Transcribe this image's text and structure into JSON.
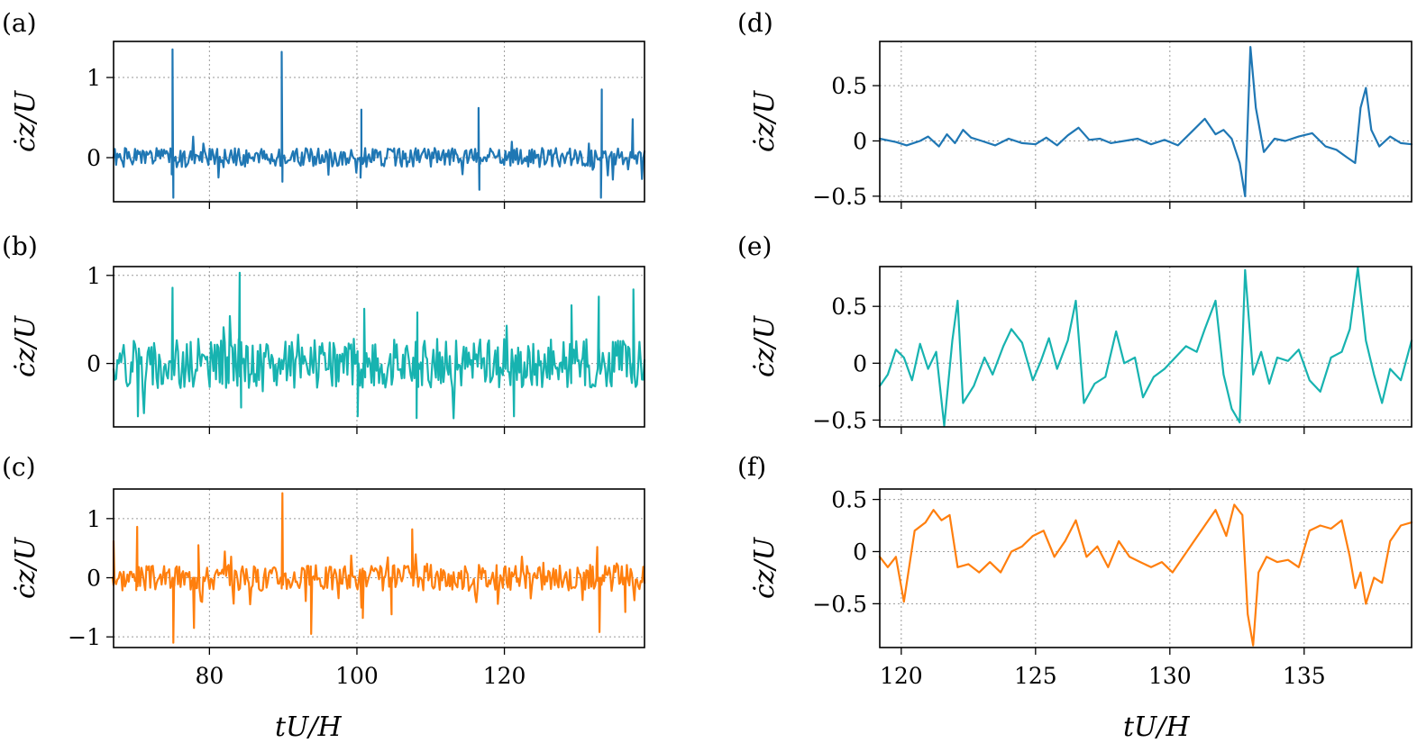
{
  "colors": {
    "blue": "#1f77b4",
    "teal": "#17b3b0",
    "orange": "#ff7f0e"
  },
  "chart_data": [
    {
      "panel": "(a)",
      "type": "line",
      "ylabel": "ċz/U",
      "xlabel": "",
      "xlim": [
        67,
        139
      ],
      "ylim": [
        -0.55,
        1.45
      ],
      "xticks": [
        80,
        100,
        120
      ],
      "yticks": [
        0,
        1
      ],
      "ytick_labels": [
        "0",
        "1"
      ],
      "grid": true,
      "color": "#1f77b4",
      "spikes": [
        [
          75,
          1.35
        ],
        [
          75.1,
          -0.5
        ],
        [
          89.8,
          1.32
        ],
        [
          89.9,
          -0.3
        ],
        [
          100.6,
          0.6
        ],
        [
          100.5,
          -0.25
        ],
        [
          116.5,
          0.62
        ],
        [
          116.6,
          -0.4
        ],
        [
          133.2,
          0.85
        ],
        [
          133.1,
          -0.5
        ],
        [
          137.4,
          0.48
        ]
      ],
      "noise": 0.12,
      "seed": 1
    },
    {
      "panel": "(b)",
      "type": "line",
      "ylabel": "ċz/U",
      "xlabel": "",
      "xlim": [
        67,
        139
      ],
      "ylim": [
        -0.72,
        1.1
      ],
      "xticks": [
        80,
        100,
        120
      ],
      "yticks": [
        0,
        1
      ],
      "ytick_labels": [
        "0",
        "1"
      ],
      "grid": true,
      "color": "#17b3b0",
      "spikes": [
        [
          75,
          0.86
        ],
        [
          84.1,
          1.03
        ],
        [
          84.3,
          -0.5
        ],
        [
          70.3,
          -0.6
        ],
        [
          100.1,
          -0.6
        ],
        [
          101,
          0.62
        ],
        [
          108.1,
          -0.62
        ],
        [
          108.2,
          0.58
        ],
        [
          121.3,
          -0.6
        ],
        [
          132.8,
          0.76
        ],
        [
          137.5,
          0.84
        ],
        [
          129.1,
          0.66
        ]
      ],
      "noise": 0.28,
      "seed": 2
    },
    {
      "panel": "(c)",
      "type": "line",
      "ylabel": "ċz/U",
      "xlabel": "",
      "xlim": [
        67,
        139
      ],
      "ylim": [
        -1.18,
        1.5
      ],
      "xticks": [
        80,
        100,
        120
      ],
      "yticks": [
        -1,
        0,
        1
      ],
      "ytick_labels": [
        "−1",
        "0",
        "1"
      ],
      "grid": true,
      "color": "#ff7f0e",
      "spikes": [
        [
          67,
          0.62
        ],
        [
          70.2,
          0.86
        ],
        [
          75.1,
          -1.1
        ],
        [
          77.9,
          -0.85
        ],
        [
          78.5,
          0.55
        ],
        [
          89.9,
          1.43
        ],
        [
          93.8,
          -0.95
        ],
        [
          100.8,
          -0.68
        ],
        [
          104.7,
          -0.62
        ],
        [
          107.5,
          0.82
        ],
        [
          132.6,
          0.52
        ],
        [
          132.9,
          -0.92
        ],
        [
          136.4,
          -0.58
        ]
      ],
      "noise": 0.22,
      "seed": 3
    },
    {
      "panel": "(d)",
      "type": "line",
      "ylabel": "ċz/U",
      "xlabel": "",
      "xlim": [
        119.2,
        139
      ],
      "ylim": [
        -0.55,
        0.9
      ],
      "xticks": [
        120,
        125,
        130,
        135
      ],
      "yticks": [
        -0.5,
        0,
        0.5
      ],
      "ytick_labels": [
        "−0.5",
        "0",
        "0.5"
      ],
      "grid": true,
      "color": "#1f77b4",
      "points": [
        [
          119.2,
          0.02
        ],
        [
          119.8,
          -0.01
        ],
        [
          120.2,
          -0.04
        ],
        [
          120.7,
          0.0
        ],
        [
          121.0,
          0.04
        ],
        [
          121.4,
          -0.05
        ],
        [
          121.7,
          0.06
        ],
        [
          122.0,
          -0.02
        ],
        [
          122.3,
          0.1
        ],
        [
          122.6,
          0.03
        ],
        [
          123.0,
          0.0
        ],
        [
          123.5,
          -0.04
        ],
        [
          124.0,
          0.02
        ],
        [
          124.5,
          -0.02
        ],
        [
          125.0,
          -0.03
        ],
        [
          125.4,
          0.03
        ],
        [
          125.8,
          -0.04
        ],
        [
          126.2,
          0.05
        ],
        [
          126.6,
          0.12
        ],
        [
          127.0,
          0.01
        ],
        [
          127.4,
          0.02
        ],
        [
          127.8,
          -0.02
        ],
        [
          128.3,
          0.0
        ],
        [
          128.8,
          0.02
        ],
        [
          129.3,
          -0.03
        ],
        [
          129.8,
          0.01
        ],
        [
          130.3,
          -0.04
        ],
        [
          130.8,
          0.08
        ],
        [
          131.3,
          0.2
        ],
        [
          131.7,
          0.06
        ],
        [
          132.0,
          0.1
        ],
        [
          132.3,
          0.02
        ],
        [
          132.6,
          -0.2
        ],
        [
          132.8,
          -0.5
        ],
        [
          133.0,
          0.85
        ],
        [
          133.2,
          0.3
        ],
        [
          133.5,
          -0.1
        ],
        [
          133.9,
          0.02
        ],
        [
          134.3,
          0.0
        ],
        [
          134.8,
          0.04
        ],
        [
          135.3,
          0.07
        ],
        [
          135.8,
          -0.05
        ],
        [
          136.2,
          -0.08
        ],
        [
          136.6,
          -0.15
        ],
        [
          136.9,
          -0.2
        ],
        [
          137.1,
          0.3
        ],
        [
          137.3,
          0.48
        ],
        [
          137.5,
          0.1
        ],
        [
          137.8,
          -0.05
        ],
        [
          138.2,
          0.04
        ],
        [
          138.6,
          -0.02
        ],
        [
          139.0,
          -0.03
        ]
      ]
    },
    {
      "panel": "(e)",
      "type": "line",
      "ylabel": "ċz/U",
      "xlabel": "",
      "xlim": [
        119.2,
        139
      ],
      "ylim": [
        -0.56,
        0.85
      ],
      "xticks": [
        120,
        125,
        130,
        135
      ],
      "yticks": [
        -0.5,
        0,
        0.5
      ],
      "ytick_labels": [
        "−0.5",
        "0",
        "0.5"
      ],
      "grid": true,
      "color": "#17b3b0",
      "points": [
        [
          119.2,
          -0.2
        ],
        [
          119.5,
          -0.1
        ],
        [
          119.8,
          0.12
        ],
        [
          120.1,
          0.05
        ],
        [
          120.4,
          -0.15
        ],
        [
          120.7,
          0.17
        ],
        [
          121.0,
          -0.05
        ],
        [
          121.3,
          0.1
        ],
        [
          121.6,
          -0.55
        ],
        [
          121.9,
          0.2
        ],
        [
          122.1,
          0.55
        ],
        [
          122.3,
          -0.35
        ],
        [
          122.7,
          -0.2
        ],
        [
          123.1,
          0.05
        ],
        [
          123.4,
          -0.1
        ],
        [
          123.8,
          0.15
        ],
        [
          124.1,
          0.3
        ],
        [
          124.5,
          0.18
        ],
        [
          124.9,
          -0.15
        ],
        [
          125.2,
          0.02
        ],
        [
          125.5,
          0.22
        ],
        [
          125.8,
          -0.05
        ],
        [
          126.2,
          0.2
        ],
        [
          126.5,
          0.55
        ],
        [
          126.8,
          -0.35
        ],
        [
          127.2,
          -0.18
        ],
        [
          127.6,
          -0.12
        ],
        [
          128.0,
          0.28
        ],
        [
          128.3,
          0.0
        ],
        [
          128.7,
          0.05
        ],
        [
          129.0,
          -0.3
        ],
        [
          129.4,
          -0.12
        ],
        [
          129.8,
          -0.05
        ],
        [
          130.2,
          0.05
        ],
        [
          130.6,
          0.15
        ],
        [
          131.0,
          0.1
        ],
        [
          131.3,
          0.3
        ],
        [
          131.7,
          0.55
        ],
        [
          132.0,
          -0.1
        ],
        [
          132.3,
          -0.4
        ],
        [
          132.6,
          -0.52
        ],
        [
          132.8,
          0.82
        ],
        [
          133.1,
          -0.1
        ],
        [
          133.4,
          0.1
        ],
        [
          133.7,
          -0.18
        ],
        [
          134.0,
          0.05
        ],
        [
          134.4,
          0.02
        ],
        [
          134.8,
          0.12
        ],
        [
          135.2,
          -0.15
        ],
        [
          135.6,
          -0.25
        ],
        [
          136.0,
          0.05
        ],
        [
          136.4,
          0.1
        ],
        [
          136.7,
          0.3
        ],
        [
          137.0,
          0.84
        ],
        [
          137.3,
          0.2
        ],
        [
          137.6,
          -0.1
        ],
        [
          137.9,
          -0.35
        ],
        [
          138.2,
          -0.05
        ],
        [
          138.6,
          -0.15
        ],
        [
          139.0,
          0.2
        ]
      ]
    },
    {
      "panel": "(f)",
      "type": "line",
      "ylabel": "ċz/U",
      "xlabel": "tU/H",
      "xlim": [
        119.2,
        139
      ],
      "ylim": [
        -0.92,
        0.6
      ],
      "xticks": [
        120,
        125,
        130,
        135
      ],
      "xtick_labels": [
        "120",
        "125",
        "130",
        "135"
      ],
      "yticks": [
        -0.5,
        0,
        0.5
      ],
      "ytick_labels": [
        "−0.5",
        "0",
        "0.5"
      ],
      "grid": true,
      "color": "#ff7f0e",
      "points": [
        [
          119.2,
          -0.05
        ],
        [
          119.5,
          -0.15
        ],
        [
          119.8,
          -0.05
        ],
        [
          120.1,
          -0.48
        ],
        [
          120.5,
          0.2
        ],
        [
          120.9,
          0.28
        ],
        [
          121.2,
          0.4
        ],
        [
          121.5,
          0.3
        ],
        [
          121.8,
          0.35
        ],
        [
          122.1,
          -0.15
        ],
        [
          122.5,
          -0.12
        ],
        [
          122.9,
          -0.2
        ],
        [
          123.3,
          -0.1
        ],
        [
          123.7,
          -0.2
        ],
        [
          124.1,
          0.0
        ],
        [
          124.5,
          0.05
        ],
        [
          124.9,
          0.15
        ],
        [
          125.3,
          0.2
        ],
        [
          125.7,
          -0.05
        ],
        [
          126.1,
          0.1
        ],
        [
          126.5,
          0.3
        ],
        [
          126.9,
          -0.05
        ],
        [
          127.3,
          0.05
        ],
        [
          127.7,
          -0.15
        ],
        [
          128.1,
          0.1
        ],
        [
          128.5,
          -0.05
        ],
        [
          128.9,
          -0.1
        ],
        [
          129.3,
          -0.15
        ],
        [
          129.7,
          -0.1
        ],
        [
          130.1,
          -0.2
        ],
        [
          130.5,
          -0.05
        ],
        [
          130.9,
          0.1
        ],
        [
          131.3,
          0.25
        ],
        [
          131.7,
          0.4
        ],
        [
          132.1,
          0.15
        ],
        [
          132.4,
          0.45
        ],
        [
          132.7,
          0.35
        ],
        [
          132.9,
          -0.6
        ],
        [
          133.1,
          -0.9
        ],
        [
          133.3,
          -0.2
        ],
        [
          133.6,
          -0.05
        ],
        [
          134.0,
          -0.1
        ],
        [
          134.4,
          -0.08
        ],
        [
          134.8,
          -0.15
        ],
        [
          135.2,
          0.2
        ],
        [
          135.6,
          0.25
        ],
        [
          136.0,
          0.22
        ],
        [
          136.4,
          0.3
        ],
        [
          136.7,
          -0.05
        ],
        [
          136.9,
          -0.35
        ],
        [
          137.1,
          -0.2
        ],
        [
          137.3,
          -0.5
        ],
        [
          137.6,
          -0.25
        ],
        [
          137.9,
          -0.3
        ],
        [
          138.2,
          0.1
        ],
        [
          138.6,
          0.25
        ],
        [
          139.0,
          0.28
        ]
      ]
    }
  ]
}
